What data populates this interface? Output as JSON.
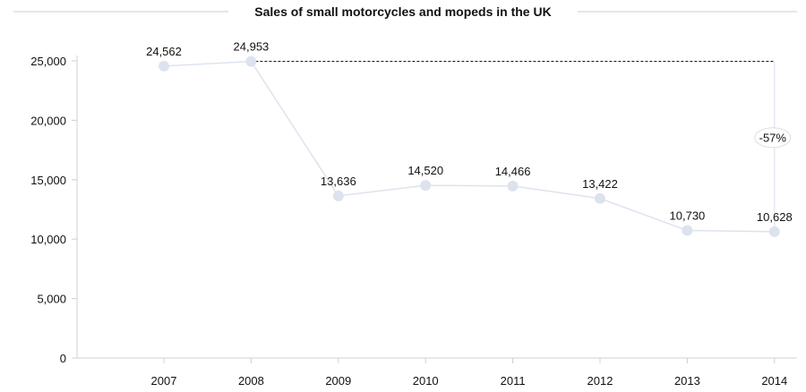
{
  "chart_data": {
    "type": "line",
    "title": "Sales of small motorcycles and mopeds in the UK",
    "x": [
      "2007",
      "2008",
      "2009",
      "2010",
      "2011",
      "2012",
      "2013",
      "2014"
    ],
    "values": [
      24562,
      24953,
      13636,
      14520,
      14466,
      13422,
      10730,
      10628
    ],
    "value_labels": [
      "24,562",
      "24,953",
      "13,636",
      "14,520",
      "14,466",
      "13,422",
      "10,730",
      "10,628"
    ],
    "ylim": [
      0,
      25000
    ],
    "y_ticks": [
      0,
      5000,
      10000,
      15000,
      20000,
      25000
    ],
    "y_tick_labels": [
      "0",
      "5,000",
      "10,000",
      "15,000",
      "20,000",
      "25,000"
    ],
    "xlabel": "",
    "ylabel": "",
    "grid": false,
    "legend": "none",
    "annotation": {
      "text": "-57%",
      "reference_value": 24953
    },
    "colors": {
      "line": "#dde3ee",
      "marker": "#dde3ee",
      "axis": "#d0d0d0",
      "dashed": "#000000"
    }
  }
}
